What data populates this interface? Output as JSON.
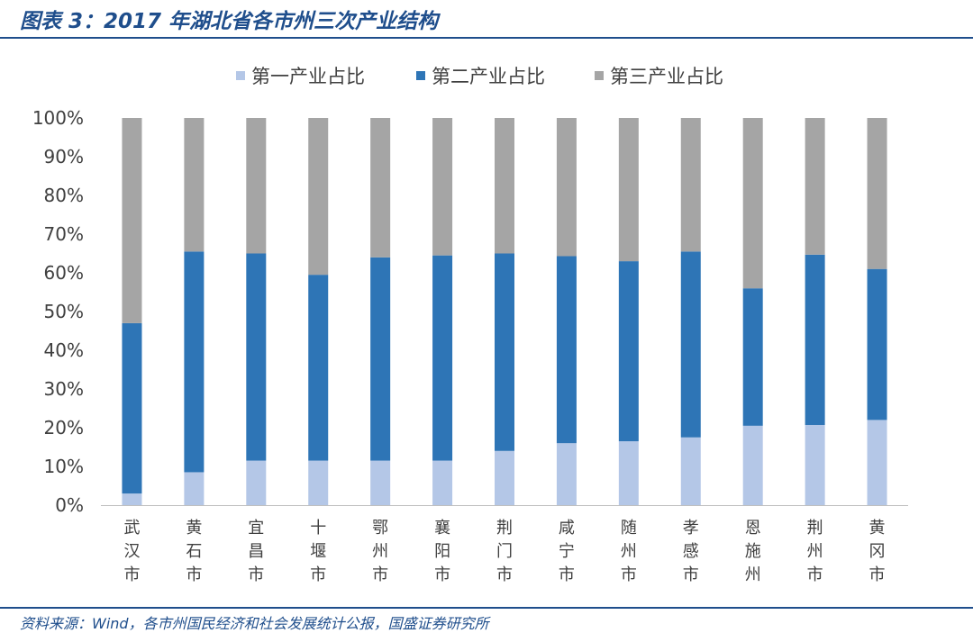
{
  "header": {
    "title": "图表 3：2017 年湖北省各市州三次产业结构"
  },
  "footer": {
    "source": "资料来源：Wind，各市州国民经济和社会发展统计公报，国盛证券研究所"
  },
  "chart_data": {
    "type": "bar",
    "stacked": true,
    "percent": true,
    "categories": [
      "武汉市",
      "黄石市",
      "宜昌市",
      "十堰市",
      "鄂州市",
      "襄阳市",
      "荆门市",
      "咸宁市",
      "随州市",
      "孝感市",
      "恩施州",
      "荆州市",
      "黄冈市"
    ],
    "series": [
      {
        "name": "第一产业占比",
        "color": "#B4C7E7",
        "values": [
          3,
          8.5,
          11.5,
          11.5,
          11.5,
          11.5,
          14,
          16,
          16.5,
          17.5,
          20.5,
          20.7,
          22
        ]
      },
      {
        "name": "第二产业占比",
        "color": "#2E75B6",
        "values": [
          44,
          57,
          53.5,
          48,
          52.5,
          53,
          51,
          48.3,
          46.5,
          48,
          35.5,
          44,
          39
        ]
      },
      {
        "name": "第三产业占比",
        "color": "#A5A5A5",
        "values": [
          53,
          34.5,
          35,
          40.5,
          36,
          35.5,
          35,
          35.7,
          37,
          34.5,
          44,
          35.3,
          39
        ]
      }
    ],
    "ylim": [
      0,
      100
    ],
    "yticks": [
      "0%",
      "10%",
      "20%",
      "30%",
      "40%",
      "50%",
      "60%",
      "70%",
      "80%",
      "90%",
      "100%"
    ],
    "legend_position": "top",
    "grid": false
  }
}
